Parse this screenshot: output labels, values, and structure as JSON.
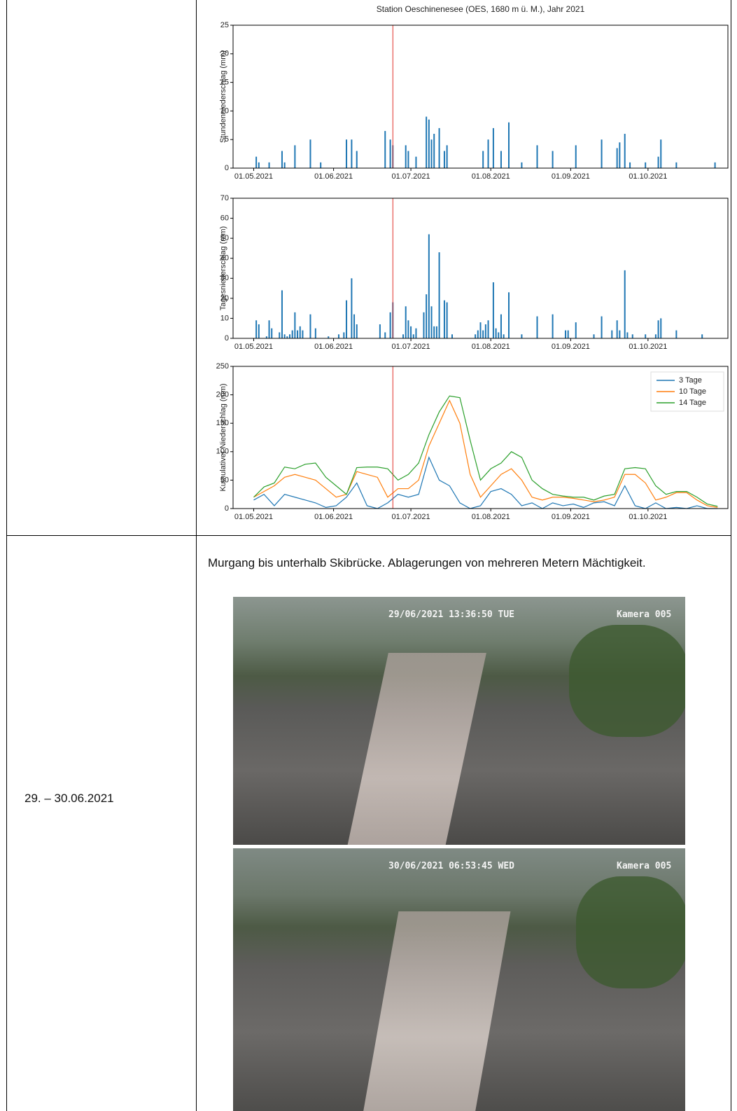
{
  "chart_data": [
    {
      "type": "bar",
      "title": "Station Oeschinenesee (OES, 1680 m ü. M.), Jahr 2021",
      "ylabel": "Stundenniederschlag (mm)",
      "color": "#1f77b4",
      "x": [
        "02.05.2021",
        "03.05.2021",
        "07.05.2021",
        "12.05.2021",
        "13.05.2021",
        "17.05.2021",
        "23.05.2021",
        "27.05.2021",
        "06.06.2021",
        "08.06.2021",
        "10.06.2021",
        "21.06.2021",
        "23.06.2021",
        "24.06.2021",
        "29.06.2021",
        "30.06.2021",
        "03.07.2021",
        "07.07.2021",
        "08.07.2021",
        "09.07.2021",
        "10.07.2021",
        "12.07.2021",
        "14.07.2021",
        "15.07.2021",
        "29.07.2021",
        "31.07.2021",
        "02.08.2021",
        "05.08.2021",
        "08.08.2021",
        "13.08.2021",
        "19.08.2021",
        "25.08.2021",
        "03.09.2021",
        "13.09.2021",
        "19.09.2021",
        "20.09.2021",
        "22.09.2021",
        "24.09.2021",
        "30.09.2021",
        "05.10.2021",
        "06.10.2021",
        "12.10.2021",
        "27.10.2021"
      ],
      "values": [
        2,
        1,
        1,
        3,
        1,
        4,
        5,
        1,
        5,
        5,
        3,
        6.5,
        5,
        4,
        4,
        3,
        2,
        9,
        8.5,
        5,
        6,
        7,
        3,
        4,
        3,
        5,
        7,
        3,
        8,
        1,
        4,
        3,
        4,
        5,
        3.5,
        4.5,
        6,
        1,
        1,
        2,
        5,
        1,
        1
      ],
      "xlim": [
        "23.04.2021",
        "01.11.2021"
      ],
      "ylim": [
        0,
        25
      ],
      "yticks": [
        0,
        5,
        10,
        15,
        20,
        25
      ],
      "xticks": [
        "01.05.2021",
        "01.06.2021",
        "01.07.2021",
        "01.08.2021",
        "01.09.2021",
        "01.10.2021"
      ],
      "vline": {
        "x": "24.06.2021",
        "color": "#e0302a"
      }
    },
    {
      "type": "bar",
      "ylabel": "Tagesniederschlag (mm)",
      "color": "#1f77b4",
      "x": [
        "02.05.2021",
        "03.05.2021",
        "06.05.2021",
        "07.05.2021",
        "08.05.2021",
        "11.05.2021",
        "12.05.2021",
        "13.05.2021",
        "14.05.2021",
        "15.05.2021",
        "16.05.2021",
        "17.05.2021",
        "18.05.2021",
        "19.05.2021",
        "20.05.2021",
        "23.05.2021",
        "25.05.2021",
        "30.05.2021",
        "03.06.2021",
        "05.06.2021",
        "06.06.2021",
        "08.06.2021",
        "09.06.2021",
        "10.06.2021",
        "19.06.2021",
        "21.06.2021",
        "23.06.2021",
        "24.06.2021",
        "28.06.2021",
        "29.06.2021",
        "30.06.2021",
        "01.07.2021",
        "02.07.2021",
        "03.07.2021",
        "06.07.2021",
        "07.07.2021",
        "08.07.2021",
        "09.07.2021",
        "10.07.2021",
        "11.07.2021",
        "12.07.2021",
        "14.07.2021",
        "15.07.2021",
        "17.07.2021",
        "26.07.2021",
        "27.07.2021",
        "28.07.2021",
        "29.07.2021",
        "30.07.2021",
        "31.07.2021",
        "02.08.2021",
        "03.08.2021",
        "04.08.2021",
        "05.08.2021",
        "06.08.2021",
        "08.08.2021",
        "13.08.2021",
        "19.08.2021",
        "25.08.2021",
        "30.08.2021",
        "31.08.2021",
        "03.09.2021",
        "10.09.2021",
        "13.09.2021",
        "17.09.2021",
        "19.09.2021",
        "20.09.2021",
        "22.09.2021",
        "23.09.2021",
        "25.09.2021",
        "30.09.2021",
        "04.10.2021",
        "05.10.2021",
        "06.10.2021",
        "12.10.2021",
        "22.10.2021"
      ],
      "values": [
        9,
        7,
        1,
        9,
        5,
        3,
        24,
        2,
        1,
        2,
        4,
        13,
        4,
        6,
        4,
        12,
        5,
        1,
        2,
        3,
        19,
        30,
        12,
        7,
        7,
        3,
        13,
        18,
        2,
        16,
        9,
        6,
        2,
        5,
        13,
        22,
        52,
        16,
        6,
        6,
        43,
        19,
        18,
        2,
        2,
        4,
        8,
        4,
        7,
        9,
        28,
        5,
        3,
        12,
        2,
        23,
        2,
        11,
        12,
        4,
        4,
        8,
        2,
        11,
        4,
        9,
        4,
        34,
        3,
        2,
        2,
        2,
        9,
        10,
        4,
        2
      ],
      "xlim": [
        "23.04.2021",
        "01.11.2021"
      ],
      "ylim": [
        0,
        70
      ],
      "yticks": [
        0,
        10,
        20,
        30,
        40,
        50,
        60,
        70
      ],
      "xticks": [
        "01.05.2021",
        "01.06.2021",
        "01.07.2021",
        "01.08.2021",
        "01.09.2021",
        "01.10.2021"
      ],
      "vline": {
        "x": "24.06.2021",
        "color": "#e0302a"
      }
    },
    {
      "type": "line",
      "ylabel": "Kumulativer Niederschlag (mm)",
      "legend": "upper right",
      "x": [
        "01.05.2021",
        "05.05.2021",
        "09.05.2021",
        "13.05.2021",
        "17.05.2021",
        "21.05.2021",
        "25.05.2021",
        "29.05.2021",
        "02.06.2021",
        "06.06.2021",
        "10.06.2021",
        "14.06.2021",
        "18.06.2021",
        "22.06.2021",
        "26.06.2021",
        "30.06.2021",
        "04.07.2021",
        "08.07.2021",
        "12.07.2021",
        "16.07.2021",
        "20.07.2021",
        "24.07.2021",
        "28.07.2021",
        "01.08.2021",
        "05.08.2021",
        "09.08.2021",
        "13.08.2021",
        "17.08.2021",
        "21.08.2021",
        "25.08.2021",
        "29.08.2021",
        "02.09.2021",
        "06.09.2021",
        "10.09.2021",
        "14.09.2021",
        "18.09.2021",
        "22.09.2021",
        "26.09.2021",
        "30.09.2021",
        "04.10.2021",
        "08.10.2021",
        "12.10.2021",
        "16.10.2021",
        "20.10.2021",
        "24.10.2021",
        "28.10.2021"
      ],
      "series": [
        {
          "name": "3 Tage",
          "color": "#1f77b4",
          "values": [
            15,
            25,
            5,
            25,
            20,
            15,
            10,
            2,
            5,
            20,
            45,
            5,
            0,
            10,
            25,
            20,
            25,
            90,
            50,
            40,
            10,
            0,
            5,
            30,
            35,
            25,
            5,
            10,
            0,
            10,
            5,
            8,
            2,
            10,
            12,
            5,
            40,
            5,
            0,
            10,
            0,
            2,
            0,
            5,
            0,
            0
          ]
        },
        {
          "name": "10 Tage",
          "color": "#ff7f0e",
          "values": [
            20,
            30,
            40,
            55,
            60,
            55,
            50,
            35,
            20,
            25,
            65,
            60,
            55,
            20,
            35,
            35,
            50,
            110,
            150,
            190,
            150,
            60,
            20,
            40,
            60,
            70,
            50,
            20,
            15,
            20,
            20,
            18,
            15,
            12,
            15,
            20,
            60,
            60,
            45,
            15,
            20,
            28,
            28,
            15,
            5,
            2
          ]
        },
        {
          "name": "14 Tage",
          "color": "#2ca02c",
          "values": [
            20,
            38,
            45,
            73,
            70,
            78,
            80,
            55,
            40,
            25,
            72,
            73,
            73,
            70,
            50,
            60,
            80,
            130,
            170,
            198,
            195,
            120,
            50,
            70,
            80,
            100,
            90,
            50,
            35,
            25,
            22,
            20,
            20,
            15,
            22,
            25,
            70,
            72,
            70,
            40,
            25,
            30,
            30,
            20,
            8,
            4
          ]
        }
      ],
      "xlim": [
        "23.04.2021",
        "01.11.2021"
      ],
      "ylim": [
        0,
        250
      ],
      "yticks": [
        0,
        50,
        100,
        150,
        200,
        250
      ],
      "xticks": [
        "01.05.2021",
        "01.06.2021",
        "01.07.2021",
        "01.08.2021",
        "01.09.2021",
        "01.10.2021"
      ],
      "vline": {
        "x": "24.06.2021",
        "color": "#e0302a"
      }
    }
  ],
  "table": {
    "rows": [
      {
        "date": "29. – 30.06.2021",
        "text": "Murgang bis unterhalb Skibrücke. Ablagerungen von mehreren Metern Mächtigkeit.",
        "photos": [
          {
            "timestamp": "29/06/2021 13:36:50 TUE",
            "camera": "Kamera 005"
          },
          {
            "timestamp": "30/06/2021 06:53:45 WED",
            "camera": "Kamera 005"
          }
        ]
      }
    ]
  }
}
